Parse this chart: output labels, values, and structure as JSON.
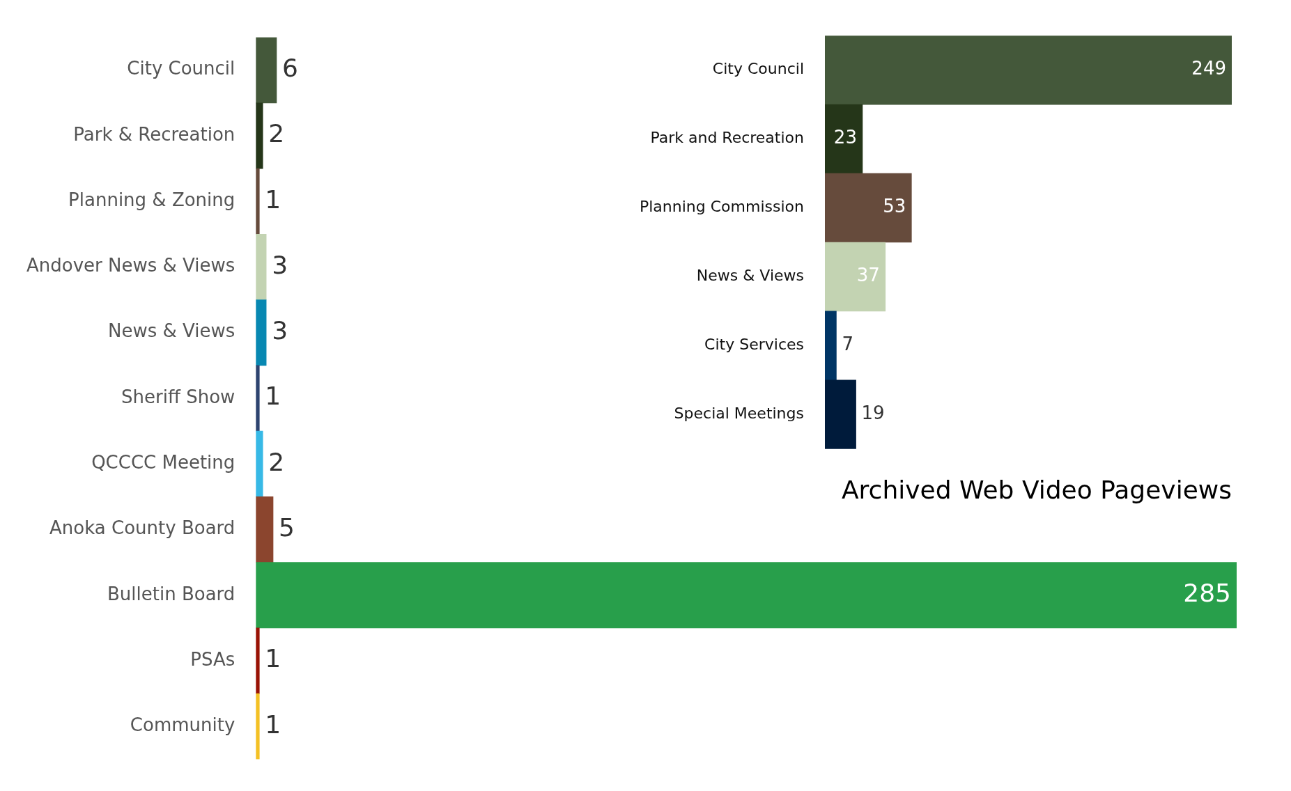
{
  "chart_data": [
    {
      "type": "bar",
      "orientation": "horizontal",
      "categories": [
        "City Council",
        "Park & Recreation",
        "Planning & Zoning",
        "Andover News & Views",
        "News & Views",
        "Sheriff Show",
        "QCCCC Meeting",
        "Anoka County Board",
        "Bulletin Board",
        "PSAs",
        "Community"
      ],
      "values": [
        6,
        2,
        1,
        3,
        3,
        1,
        2,
        5,
        285,
        1,
        1
      ],
      "colors": [
        "#44583a",
        "#253619",
        "#664b3c",
        "#c3d3b2",
        "#0788b2",
        "#2e4470",
        "#37b9e6",
        "#8b452e",
        "#289f4b",
        "#991305",
        "#f4c124"
      ],
      "data_labels": true,
      "legend": false,
      "grid": false,
      "tick_labels": "y"
    },
    {
      "type": "bar",
      "orientation": "horizontal",
      "title": "Archived Web Video Pageviews",
      "categories": [
        "City Council",
        "Park and Recreation",
        "Planning Commission",
        "News & Views",
        "City Services",
        "Special Meetings"
      ],
      "values": [
        249,
        23,
        53,
        37,
        7,
        19
      ],
      "colors": [
        "#44583a",
        "#253619",
        "#664b3c",
        "#c3d3b2",
        "#003565",
        "#001b3b"
      ],
      "data_labels": true,
      "legend": false,
      "grid": false,
      "tick_labels": "y"
    }
  ]
}
